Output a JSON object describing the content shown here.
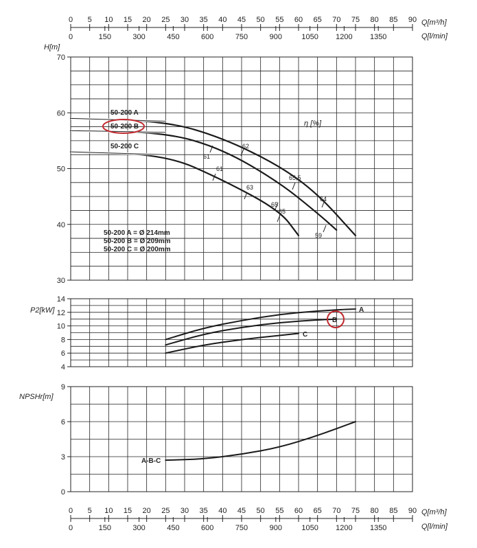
{
  "chart_data": [
    {
      "type": "line",
      "name_key": "head",
      "ylabel": "H[m]",
      "ylim": [
        30,
        70
      ],
      "yticks": [
        30,
        40,
        50,
        60,
        70
      ],
      "xlim": [
        0,
        90
      ],
      "grid": true,
      "series": [
        {
          "name": "50-200 A",
          "x": [
            0,
            25,
            40,
            55,
            65,
            75
          ],
          "y": [
            59,
            58.5,
            55.5,
            50.5,
            45.5,
            38
          ]
        },
        {
          "name": "50-200 B",
          "x": [
            0,
            25,
            40,
            55,
            65,
            70
          ],
          "y": [
            56.8,
            56.5,
            53.5,
            47.5,
            42,
            39
          ]
        },
        {
          "name": "50-200 C",
          "x": [
            0,
            25,
            40,
            55,
            60
          ],
          "y": [
            53,
            52.5,
            48,
            42.5,
            38
          ]
        }
      ],
      "efficiency_label": "η [%]",
      "efficiency_marks": [
        "61",
        "62",
        "61",
        "63",
        "65,5",
        "65",
        "65",
        "64",
        "59"
      ],
      "legend": [
        "50-200 A = Ø 214mm",
        "50-200 B = Ø 209mm",
        "50-200 C = Ø 200mm"
      ]
    },
    {
      "type": "line",
      "name_key": "power",
      "ylabel": "P2[kW]",
      "ylim": [
        4,
        14
      ],
      "yticks": [
        4,
        6,
        8,
        10,
        12,
        14
      ],
      "xlim": [
        0,
        90
      ],
      "grid": true,
      "series": [
        {
          "name": "A",
          "x": [
            25,
            35,
            45,
            55,
            65,
            75
          ],
          "y": [
            8,
            9.7,
            10.8,
            11.7,
            12.2,
            12.5
          ]
        },
        {
          "name": "B",
          "x": [
            25,
            35,
            45,
            55,
            65,
            70
          ],
          "y": [
            7.2,
            8.8,
            9.8,
            10.5,
            10.9,
            11
          ]
        },
        {
          "name": "C",
          "x": [
            25,
            35,
            45,
            55,
            60
          ],
          "y": [
            6,
            7.2,
            8,
            8.6,
            8.9
          ]
        }
      ]
    },
    {
      "type": "line",
      "name_key": "npsh",
      "ylabel": "NPSHr[m]",
      "ylim": [
        0,
        9
      ],
      "yticks": [
        0,
        3,
        6,
        9
      ],
      "xlim": [
        0,
        90
      ],
      "grid": true,
      "series": [
        {
          "name": "A-B-C",
          "x": [
            25,
            35,
            45,
            55,
            65,
            75
          ],
          "y": [
            2.7,
            2.8,
            3.2,
            3.8,
            4.8,
            6
          ]
        }
      ]
    }
  ],
  "x_axis": {
    "q_m3h_label": "Q[m³/h]",
    "q_lmin_label": "Q[l/min]",
    "q_m3h_ticks": [
      "0",
      "5",
      "10",
      "15",
      "20",
      "25",
      "30",
      "35",
      "40",
      "45",
      "50",
      "55",
      "60",
      "65",
      "70",
      "75",
      "80",
      "85",
      "90"
    ],
    "q_lmin_ticks": [
      "0",
      "150",
      "300",
      "450",
      "600",
      "750",
      "900",
      "1050",
      "1200",
      "1350"
    ]
  },
  "colors": {
    "curve": "#1a1a1a",
    "grid": "#222222",
    "highlight": "#c0282d"
  }
}
